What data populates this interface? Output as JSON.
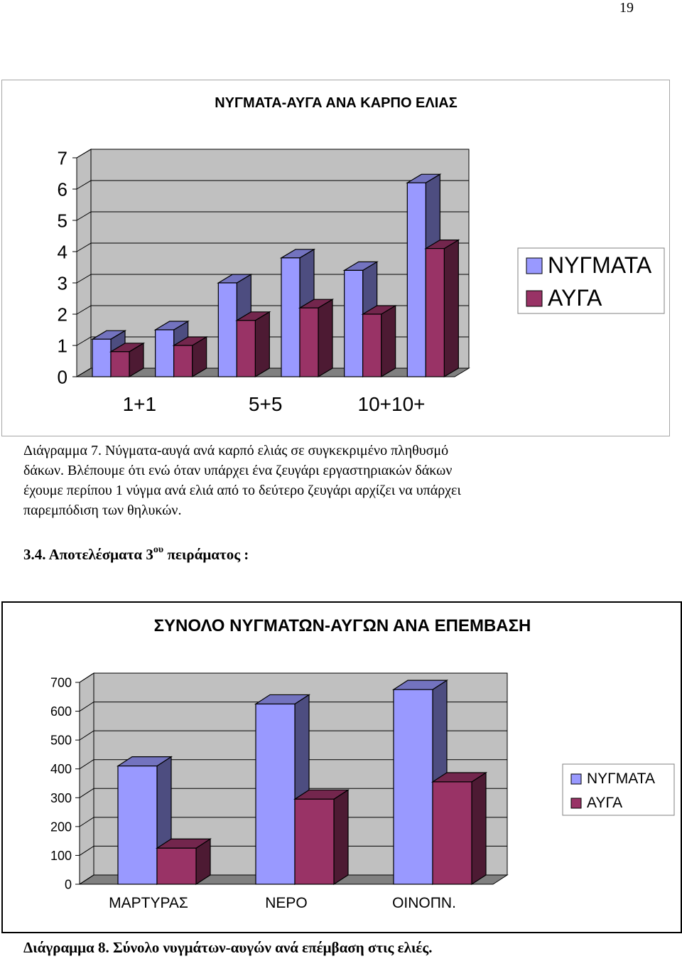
{
  "page_number": "19",
  "colors": {
    "series1": "#9999ff",
    "series2": "#993366",
    "wall": "#c0c0c0",
    "floor": "#808080"
  },
  "chart_data": [
    {
      "type": "bar",
      "title": "ΝΥΓΜΑΤΑ-ΑΥΓΑ ΑΝΑ ΚΑΡΠΟ ΕΛΙΑΣ",
      "categories": [
        "1+1",
        "",
        "5+5",
        "",
        "10+10+",
        ""
      ],
      "series": [
        {
          "name": "ΝΥΓΜΑΤΑ",
          "values": [
            1.2,
            1.5,
            3.0,
            3.8,
            3.4,
            6.2
          ]
        },
        {
          "name": "ΑΥΓΑ",
          "values": [
            0.8,
            1.0,
            1.8,
            2.2,
            2.0,
            4.1
          ]
        }
      ],
      "y_ticks": [
        "0",
        "1",
        "2",
        "3",
        "4",
        "5",
        "6",
        "7"
      ],
      "ylim": [
        0,
        7
      ],
      "legend": "right",
      "grid": true
    },
    {
      "type": "bar",
      "title": "ΣΥΝΟΛΟ ΝΥΓΜΑΤΩΝ-ΑΥΓΩΝ ΑΝΑ ΕΠΕΜΒΑΣΗ",
      "categories": [
        "ΜΑΡΤΥΡΑΣ",
        "ΝΕΡΟ",
        "ΟΙΝΟΠΝ."
      ],
      "series": [
        {
          "name": "ΝΥΓΜΑΤΑ",
          "values": [
            410,
            625,
            675
          ]
        },
        {
          "name": "ΑΥΓΑ",
          "values": [
            125,
            295,
            355
          ]
        }
      ],
      "y_ticks": [
        "0",
        "100",
        "200",
        "300",
        "400",
        "500",
        "600",
        "700"
      ],
      "ylim": [
        0,
        700
      ],
      "legend": "right",
      "grid": true
    }
  ],
  "caption1": {
    "lines": [
      "Διάγραμμα 7. Νύγματα-αυγά ανά καρπό ελιάς σε συγκεκριμένο πληθυσμό",
      "δάκων. Βλέπουμε ότι ενώ όταν υπάρχει ένα ζευγάρι εργαστηριακών δάκων",
      "έχουμε περίπου 1 νύγμα ανά ελιά από το δεύτερο ζευγάρι αρχίζει να υπάρχει",
      "παρεμπόδιση των θηλυκών."
    ]
  },
  "heading": {
    "prefix": "3.4. Αποτελέσματα 3",
    "superscript": "ου",
    "suffix": " πειράματος :"
  },
  "caption2": "Διάγραμμα 8. Σύνολο νυγμάτων-αυγών ανά επέμβαση στις ελιές."
}
